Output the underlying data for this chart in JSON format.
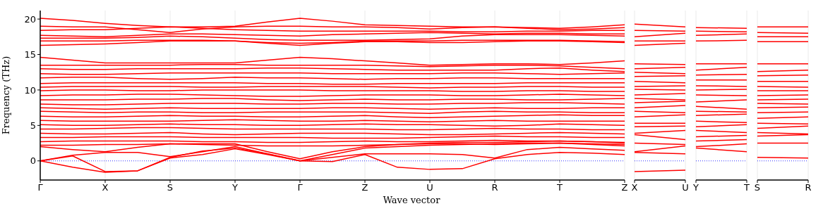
{
  "chart_data": [
    {
      "type": "line",
      "xlabel": "Wave vector",
      "ylabel": "Frequency (THz)",
      "categories": [
        "Γ",
        null,
        "X",
        null,
        "S",
        null,
        "Y",
        null,
        "Γ",
        null,
        "Z",
        null,
        "U",
        null,
        "R",
        null,
        "T",
        null,
        "Z"
      ],
      "ylim": [
        -2.7,
        21.2
      ],
      "yticks": [
        0,
        5,
        10,
        15,
        20
      ],
      "grid": "x",
      "line_style": "solid",
      "marker": "none",
      "ref_lines": [
        {
          "axis": "y",
          "value": 0,
          "color": "#0000ff",
          "line_style": "dotted"
        }
      ],
      "series": [
        {
          "color": "#ff0000",
          "values": [
            20.1,
            19.8,
            19.4,
            19.1,
            18.9,
            18.9,
            19.0,
            19.6,
            20.1,
            19.7,
            19.2,
            19.1,
            19.0,
            18.9,
            18.9,
            18.8,
            18.7,
            18.9,
            19.2
          ]
        },
        {
          "color": "#ff0000",
          "values": [
            19.0,
            18.9,
            18.9,
            18.5,
            18.1,
            18.6,
            18.9,
            19.0,
            19.0,
            18.9,
            18.9,
            18.8,
            18.6,
            18.8,
            18.9,
            18.7,
            18.5,
            18.6,
            18.8
          ]
        },
        {
          "color": "#ff0000",
          "values": [
            18.4,
            18.5,
            18.5,
            18.7,
            18.9,
            18.7,
            18.5,
            18.4,
            18.3,
            18.3,
            18.3,
            18.3,
            18.3,
            18.2,
            18.2,
            18.3,
            18.3,
            18.4,
            18.4
          ]
        },
        {
          "color": "#ff0000",
          "values": [
            17.7,
            17.6,
            17.5,
            17.7,
            17.9,
            17.9,
            17.8,
            17.7,
            17.6,
            17.8,
            17.9,
            18.0,
            18.1,
            18.0,
            17.9,
            18.0,
            18.0,
            17.9,
            17.9
          ]
        },
        {
          "color": "#ff0000",
          "values": [
            17.3,
            17.3,
            17.3,
            17.4,
            17.6,
            17.5,
            17.3,
            17.1,
            17.0,
            17.0,
            17.0,
            17.1,
            17.2,
            17.6,
            17.8,
            17.8,
            17.8,
            17.7,
            17.6
          ]
        },
        {
          "color": "#ff0000",
          "values": [
            16.9,
            16.9,
            16.9,
            17.0,
            17.0,
            17.0,
            16.9,
            16.7,
            16.6,
            16.7,
            16.9,
            16.9,
            16.9,
            17.0,
            17.0,
            17.0,
            17.0,
            16.9,
            16.8
          ]
        },
        {
          "color": "#ff0000",
          "values": [
            16.3,
            16.4,
            16.5,
            16.7,
            16.9,
            16.9,
            16.9,
            16.6,
            16.3,
            16.6,
            16.8,
            16.8,
            16.7,
            16.7,
            16.8,
            16.9,
            16.9,
            16.8,
            16.7
          ]
        },
        {
          "color": "#ff0000",
          "values": [
            14.6,
            14.2,
            13.8,
            13.8,
            13.8,
            13.8,
            13.8,
            14.2,
            14.6,
            14.4,
            14.1,
            13.8,
            13.5,
            13.6,
            13.7,
            13.7,
            13.6,
            13.8,
            14.1
          ]
        },
        {
          "color": "#ff0000",
          "values": [
            13.5,
            13.5,
            13.5,
            13.5,
            13.5,
            13.6,
            13.6,
            13.5,
            13.5,
            13.5,
            13.5,
            13.4,
            13.3,
            13.4,
            13.5,
            13.5,
            13.4,
            13.2,
            13.0
          ]
        },
        {
          "color": "#ff0000",
          "values": [
            13.0,
            12.9,
            12.9,
            13.0,
            13.0,
            13.0,
            13.0,
            13.1,
            13.1,
            13.0,
            12.9,
            12.8,
            12.8,
            12.8,
            12.8,
            13.0,
            13.1,
            12.8,
            12.6
          ]
        },
        {
          "color": "#ff0000",
          "values": [
            12.3,
            12.2,
            12.2,
            12.3,
            12.4,
            12.4,
            12.4,
            12.4,
            12.4,
            12.3,
            12.3,
            12.3,
            12.3,
            12.4,
            12.4,
            12.3,
            12.2,
            12.3,
            12.4
          ]
        },
        {
          "color": "#ff0000",
          "values": [
            11.7,
            11.8,
            11.8,
            11.6,
            11.5,
            11.6,
            11.8,
            11.7,
            11.7,
            11.6,
            11.5,
            11.6,
            11.6,
            11.7,
            11.7,
            11.6,
            11.6,
            11.6,
            11.6
          ]
        },
        {
          "color": "#ff0000",
          "values": [
            10.9,
            11.0,
            11.0,
            11.0,
            11.0,
            11.0,
            11.0,
            10.9,
            10.9,
            10.8,
            10.8,
            10.9,
            10.9,
            10.9,
            10.9,
            11.0,
            11.0,
            11.0,
            11.0
          ]
        },
        {
          "color": "#ff0000",
          "values": [
            10.4,
            10.5,
            10.5,
            10.5,
            10.5,
            10.4,
            10.4,
            10.5,
            10.5,
            10.5,
            10.5,
            10.4,
            10.3,
            10.4,
            10.4,
            10.5,
            10.5,
            10.4,
            10.4
          ]
        },
        {
          "color": "#ff0000",
          "values": [
            9.9,
            10.0,
            10.0,
            9.9,
            9.9,
            10.0,
            10.0,
            10.0,
            10.0,
            9.9,
            9.9,
            9.9,
            9.9,
            9.8,
            9.8,
            9.9,
            9.9,
            9.8,
            9.8
          ]
        },
        {
          "color": "#ff0000",
          "values": [
            9.2,
            9.3,
            9.3,
            9.4,
            9.4,
            9.3,
            9.2,
            9.1,
            9.1,
            9.2,
            9.3,
            9.3,
            9.3,
            9.2,
            9.2,
            9.3,
            9.4,
            9.3,
            9.2
          ]
        },
        {
          "color": "#ff0000",
          "values": [
            8.6,
            8.6,
            8.6,
            8.7,
            8.7,
            8.8,
            8.8,
            8.6,
            8.5,
            8.6,
            8.7,
            8.6,
            8.6,
            8.7,
            8.7,
            8.6,
            8.6,
            8.7,
            8.8
          ]
        },
        {
          "color": "#ff0000",
          "values": [
            8.0,
            7.9,
            7.9,
            8.0,
            8.1,
            8.1,
            8.1,
            8.0,
            8.0,
            8.1,
            8.1,
            8.0,
            8.0,
            8.1,
            8.1,
            8.2,
            8.2,
            8.1,
            8.0
          ]
        },
        {
          "color": "#ff0000",
          "values": [
            7.5,
            7.4,
            7.3,
            7.4,
            7.5,
            7.4,
            7.4,
            7.4,
            7.4,
            7.5,
            7.5,
            7.4,
            7.3,
            7.4,
            7.5,
            7.4,
            7.4,
            7.5,
            7.5
          ]
        },
        {
          "color": "#ff0000",
          "values": [
            7.0,
            6.9,
            6.8,
            6.9,
            6.9,
            6.8,
            6.8,
            6.9,
            6.9,
            6.9,
            6.9,
            6.8,
            6.7,
            6.9,
            7.0,
            6.9,
            6.9,
            6.8,
            6.8
          ]
        },
        {
          "color": "#ff0000",
          "values": [
            6.3,
            6.2,
            6.2,
            6.3,
            6.4,
            6.3,
            6.3,
            6.2,
            6.2,
            6.3,
            6.4,
            6.2,
            6.1,
            6.2,
            6.3,
            6.4,
            6.5,
            6.4,
            6.4
          ]
        },
        {
          "color": "#ff0000",
          "values": [
            5.7,
            5.6,
            5.6,
            5.6,
            5.6,
            5.7,
            5.8,
            5.7,
            5.6,
            5.6,
            5.7,
            5.6,
            5.5,
            5.6,
            5.7,
            5.6,
            5.6,
            5.6,
            5.6
          ]
        },
        {
          "color": "#ff0000",
          "values": [
            5.1,
            5.0,
            5.0,
            5.1,
            5.2,
            5.1,
            5.1,
            5.0,
            5.0,
            5.1,
            5.2,
            5.1,
            5.1,
            5.0,
            4.9,
            5.0,
            5.2,
            5.1,
            5.0
          ]
        },
        {
          "color": "#ff0000",
          "values": [
            4.5,
            4.5,
            4.6,
            4.7,
            4.7,
            4.6,
            4.5,
            4.5,
            4.5,
            4.5,
            4.5,
            4.4,
            4.4,
            4.5,
            4.6,
            4.5,
            4.5,
            4.4,
            4.4
          ]
        },
        {
          "color": "#ff0000",
          "values": [
            3.9,
            3.8,
            3.8,
            3.9,
            4.0,
            3.8,
            3.7,
            3.8,
            3.9,
            3.9,
            3.9,
            3.8,
            3.7,
            3.7,
            3.8,
            3.9,
            4.0,
            3.9,
            3.8
          ]
        },
        {
          "color": "#ff0000",
          "values": [
            3.3,
            3.3,
            3.4,
            3.4,
            3.4,
            3.3,
            3.3,
            3.3,
            3.3,
            3.2,
            3.2,
            3.2,
            3.3,
            3.4,
            3.5,
            3.4,
            3.4,
            3.3,
            3.3
          ]
        },
        {
          "color": "#ff0000",
          "values": [
            2.7,
            2.8,
            2.8,
            2.8,
            2.8,
            2.7,
            2.7,
            2.6,
            2.6,
            2.7,
            2.8,
            2.7,
            2.7,
            2.8,
            2.9,
            2.8,
            2.8,
            2.7,
            2.6
          ]
        },
        {
          "color": "#ff0000",
          "values": [
            2.2,
            2.2,
            2.3,
            2.3,
            2.4,
            2.3,
            2.2,
            2.1,
            2.1,
            2.1,
            2.2,
            2.3,
            2.4,
            2.4,
            2.3,
            2.4,
            2.5,
            2.3,
            2.1
          ]
        },
        {
          "color": "#ff0000",
          "values": [
            2.0,
            1.6,
            1.3,
            1.9,
            2.4,
            2.4,
            2.4,
            1.3,
            0.3,
            1.3,
            2.0,
            2.3,
            2.5,
            2.6,
            2.6,
            2.7,
            2.8,
            2.7,
            2.5
          ]
        },
        {
          "color": "#ff0000",
          "values": [
            0,
            0.8,
            1.2,
            1.2,
            0.6,
            1.3,
            2.0,
            1.0,
            0,
            0.9,
            1.8,
            2.0,
            2.2,
            2.3,
            2.4,
            2.5,
            2.5,
            2.4,
            2.3
          ]
        },
        {
          "color": "#ff0000",
          "values": [
            0,
            0.7,
            -1.5,
            -1.4,
            0.5,
            1.4,
            1.8,
            1.0,
            0,
            0.5,
            1.0,
            1.0,
            1.0,
            0.9,
            0.4,
            1.6,
            1.9,
            1.7,
            1.5
          ]
        },
        {
          "color": "#ff0000",
          "values": [
            0,
            -0.9,
            -1.6,
            -1.4,
            0.4,
            0.9,
            1.7,
            0.9,
            0,
            -0.1,
            0.9,
            -0.9,
            -1.2,
            -1.1,
            0.3,
            0.9,
            1.2,
            1.1,
            0.9
          ]
        }
      ]
    },
    {
      "type": "line",
      "categories": [
        "X",
        "U"
      ],
      "ylim": [
        -2.7,
        21.2
      ],
      "yticks": [
        0,
        5,
        10,
        15,
        20
      ],
      "tick_labels": "x",
      "grid": "x",
      "line_style": "solid",
      "marker": "none",
      "ref_lines": [
        {
          "axis": "y",
          "value": 0,
          "color": "#0000ff",
          "line_style": "dotted"
        }
      ],
      "series": [
        {
          "color": "#ff0000",
          "values": [
            -1.5,
            -1.3
          ]
        },
        {
          "color": "#ff0000",
          "values": [
            1.2,
            1.0
          ]
        },
        {
          "color": "#ff0000",
          "values": [
            1.3,
            2.1
          ]
        },
        {
          "color": "#ff0000",
          "values": [
            2.5,
            2.3
          ]
        },
        {
          "color": "#ff0000",
          "values": [
            3.7,
            3.0
          ]
        },
        {
          "color": "#ff0000",
          "values": [
            3.9,
            4.3
          ]
        },
        {
          "color": "#ff0000",
          "values": [
            4.8,
            4.9
          ]
        },
        {
          "color": "#ff0000",
          "values": [
            5.3,
            5.3
          ]
        },
        {
          "color": "#ff0000",
          "values": [
            6.2,
            6.5
          ]
        },
        {
          "color": "#ff0000",
          "values": [
            7.0,
            6.8
          ]
        },
        {
          "color": "#ff0000",
          "values": [
            7.5,
            7.8
          ]
        },
        {
          "color": "#ff0000",
          "values": [
            8.2,
            8.4
          ]
        },
        {
          "color": "#ff0000",
          "values": [
            8.8,
            8.6
          ]
        },
        {
          "color": "#ff0000",
          "values": [
            9.3,
            9.5
          ]
        },
        {
          "color": "#ff0000",
          "values": [
            10.1,
            10.0
          ]
        },
        {
          "color": "#ff0000",
          "values": [
            10.5,
            10.6
          ]
        },
        {
          "color": "#ff0000",
          "values": [
            11.2,
            11.0
          ]
        },
        {
          "color": "#ff0000",
          "values": [
            11.9,
            12.0
          ]
        },
        {
          "color": "#ff0000",
          "values": [
            12.5,
            12.3
          ]
        },
        {
          "color": "#ff0000",
          "values": [
            13.0,
            13.2
          ]
        },
        {
          "color": "#ff0000",
          "values": [
            13.7,
            13.6
          ]
        },
        {
          "color": "#ff0000",
          "values": [
            16.3,
            16.6
          ]
        },
        {
          "color": "#ff0000",
          "values": [
            16.9,
            16.9
          ]
        },
        {
          "color": "#ff0000",
          "values": [
            17.5,
            18.0
          ]
        },
        {
          "color": "#ff0000",
          "values": [
            18.4,
            18.3
          ]
        },
        {
          "color": "#ff0000",
          "values": [
            19.3,
            18.9
          ]
        }
      ]
    },
    {
      "type": "line",
      "categories": [
        "Y",
        "T"
      ],
      "ylim": [
        -2.7,
        21.2
      ],
      "yticks": [
        0,
        5,
        10,
        15,
        20
      ],
      "tick_labels": "x",
      "grid": "x",
      "line_style": "solid",
      "marker": "none",
      "ref_lines": [
        {
          "axis": "y",
          "value": 0,
          "color": "#0000ff",
          "line_style": "dotted"
        }
      ],
      "series": [
        {
          "color": "#ff0000",
          "values": [
            1.8,
            1.3
          ]
        },
        {
          "color": "#ff0000",
          "values": [
            2.0,
            2.4
          ]
        },
        {
          "color": "#ff0000",
          "values": [
            2.8,
            3.0
          ]
        },
        {
          "color": "#ff0000",
          "values": [
            3.4,
            3.6
          ]
        },
        {
          "color": "#ff0000",
          "values": [
            4.3,
            4.0
          ]
        },
        {
          "color": "#ff0000",
          "values": [
            4.8,
            5.1
          ]
        },
        {
          "color": "#ff0000",
          "values": [
            5.6,
            5.4
          ]
        },
        {
          "color": "#ff0000",
          "values": [
            6.4,
            6.6
          ]
        },
        {
          "color": "#ff0000",
          "values": [
            7.0,
            6.9
          ]
        },
        {
          "color": "#ff0000",
          "values": [
            7.7,
            7.3
          ]
        },
        {
          "color": "#ff0000",
          "values": [
            8.3,
            8.6
          ]
        },
        {
          "color": "#ff0000",
          "values": [
            9.3,
            9.2
          ]
        },
        {
          "color": "#ff0000",
          "values": [
            10.0,
            10.1
          ]
        },
        {
          "color": "#ff0000",
          "values": [
            10.6,
            10.5
          ]
        },
        {
          "color": "#ff0000",
          "values": [
            11.4,
            11.4
          ]
        },
        {
          "color": "#ff0000",
          "values": [
            12.1,
            12.2
          ]
        },
        {
          "color": "#ff0000",
          "values": [
            12.8,
            13.2
          ]
        },
        {
          "color": "#ff0000",
          "values": [
            13.7,
            13.7
          ]
        },
        {
          "color": "#ff0000",
          "values": [
            16.9,
            17.0
          ]
        },
        {
          "color": "#ff0000",
          "values": [
            17.7,
            17.9
          ]
        },
        {
          "color": "#ff0000",
          "values": [
            18.3,
            18.2
          ]
        },
        {
          "color": "#ff0000",
          "values": [
            18.8,
            18.7
          ]
        }
      ]
    },
    {
      "type": "line",
      "categories": [
        "S",
        "R"
      ],
      "ylim": [
        -2.7,
        21.2
      ],
      "yticks": [
        0,
        5,
        10,
        15,
        20
      ],
      "tick_labels": "x",
      "grid": "x",
      "line_style": "solid",
      "marker": "none",
      "ref_lines": [
        {
          "axis": "y",
          "value": 0,
          "color": "#0000ff",
          "line_style": "dotted"
        }
      ],
      "series": [
        {
          "color": "#ff0000",
          "values": [
            0.5,
            0.4
          ]
        },
        {
          "color": "#ff0000",
          "values": [
            2.5,
            2.5
          ]
        },
        {
          "color": "#ff0000",
          "values": [
            3.5,
            3.7
          ]
        },
        {
          "color": "#ff0000",
          "values": [
            4.0,
            3.8
          ]
        },
        {
          "color": "#ff0000",
          "values": [
            4.6,
            4.9
          ]
        },
        {
          "color": "#ff0000",
          "values": [
            5.3,
            5.2
          ]
        },
        {
          "color": "#ff0000",
          "values": [
            6.0,
            6.2
          ]
        },
        {
          "color": "#ff0000",
          "values": [
            6.8,
            6.9
          ]
        },
        {
          "color": "#ff0000",
          "values": [
            7.5,
            7.6
          ]
        },
        {
          "color": "#ff0000",
          "values": [
            8.1,
            8.0
          ]
        },
        {
          "color": "#ff0000",
          "values": [
            8.6,
            8.7
          ]
        },
        {
          "color": "#ff0000",
          "values": [
            9.2,
            9.3
          ]
        },
        {
          "color": "#ff0000",
          "values": [
            9.9,
            9.9
          ]
        },
        {
          "color": "#ff0000",
          "values": [
            10.5,
            10.4
          ]
        },
        {
          "color": "#ff0000",
          "values": [
            11.2,
            11.2
          ]
        },
        {
          "color": "#ff0000",
          "values": [
            12.0,
            12.1
          ]
        },
        {
          "color": "#ff0000",
          "values": [
            12.6,
            12.8
          ]
        },
        {
          "color": "#ff0000",
          "values": [
            13.7,
            13.7
          ]
        },
        {
          "color": "#ff0000",
          "values": [
            16.8,
            16.8
          ]
        },
        {
          "color": "#ff0000",
          "values": [
            17.5,
            17.5
          ]
        },
        {
          "color": "#ff0000",
          "values": [
            18.1,
            18.0
          ]
        },
        {
          "color": "#ff0000",
          "values": [
            18.9,
            18.9
          ]
        }
      ]
    }
  ]
}
